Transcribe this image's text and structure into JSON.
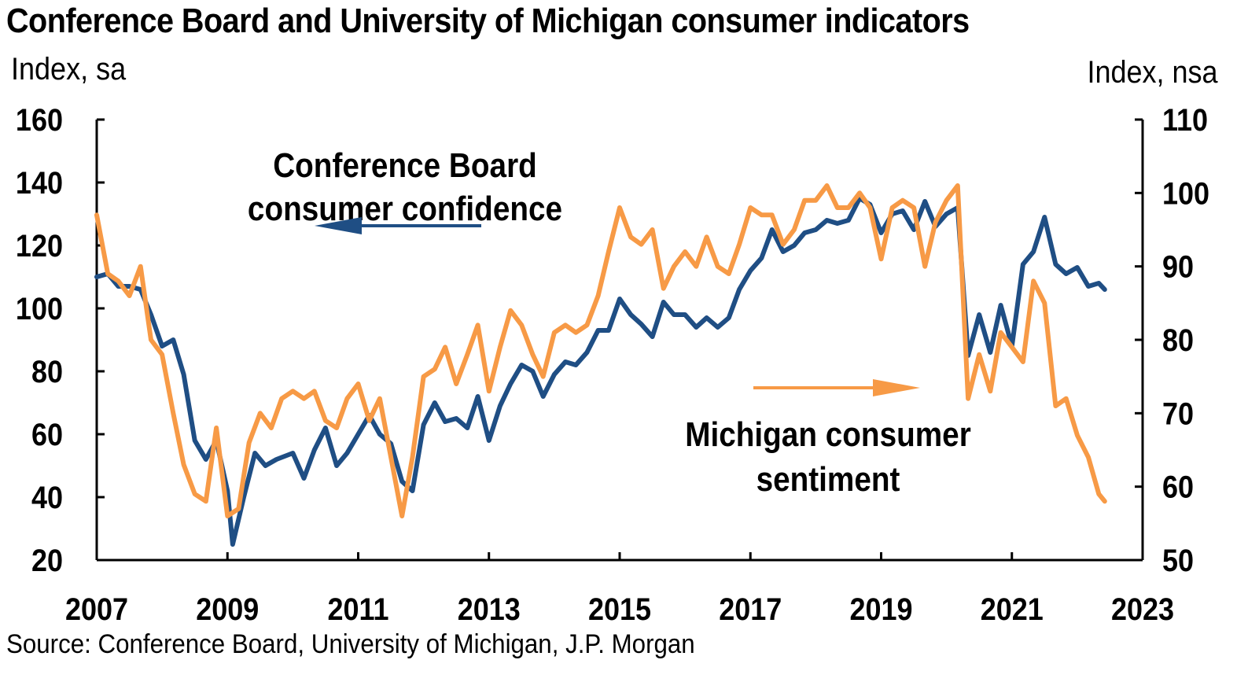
{
  "chart_data": {
    "type": "line",
    "title": "Conference Board and University of Michigan consumer indicators",
    "y_left_label": "Index, sa",
    "y_right_label": "Index, nsa",
    "y_left_lim": [
      20,
      160
    ],
    "y_left_ticks": [
      "20",
      "40",
      "60",
      "80",
      "100",
      "120",
      "140",
      "160"
    ],
    "y_right_lim": [
      50,
      110
    ],
    "y_right_ticks": [
      "50",
      "60",
      "70",
      "80",
      "90",
      "100",
      "110"
    ],
    "x_lim": [
      2007,
      2023
    ],
    "x_ticks": [
      "2007",
      "2009",
      "2011",
      "2013",
      "2015",
      "2017",
      "2019",
      "2021",
      "2023"
    ],
    "grid": false,
    "colors": {
      "conference_board": "#1f4e84",
      "michigan": "#f79a46"
    },
    "annotations": {
      "conference_board": [
        "Conference Board",
        "consumer confidence"
      ],
      "michigan": [
        "Michigan consumer",
        "sentiment"
      ]
    },
    "series": [
      {
        "name": "Conference Board consumer confidence",
        "axis": "left",
        "points": [
          [
            2007.0,
            110
          ],
          [
            2007.17,
            111
          ],
          [
            2007.33,
            107
          ],
          [
            2007.5,
            107
          ],
          [
            2007.67,
            106
          ],
          [
            2007.83,
            98
          ],
          [
            2008.0,
            88
          ],
          [
            2008.17,
            90
          ],
          [
            2008.33,
            79
          ],
          [
            2008.5,
            58
          ],
          [
            2008.67,
            52
          ],
          [
            2008.83,
            58
          ],
          [
            2009.0,
            42
          ],
          [
            2009.08,
            25
          ],
          [
            2009.25,
            40
          ],
          [
            2009.42,
            54
          ],
          [
            2009.58,
            50
          ],
          [
            2009.75,
            52
          ],
          [
            2010.0,
            54
          ],
          [
            2010.17,
            46
          ],
          [
            2010.33,
            55
          ],
          [
            2010.5,
            62
          ],
          [
            2010.67,
            50
          ],
          [
            2010.83,
            54
          ],
          [
            2011.0,
            60
          ],
          [
            2011.17,
            66
          ],
          [
            2011.33,
            60
          ],
          [
            2011.5,
            57
          ],
          [
            2011.67,
            45
          ],
          [
            2011.83,
            42
          ],
          [
            2012.0,
            63
          ],
          [
            2012.17,
            70
          ],
          [
            2012.33,
            64
          ],
          [
            2012.5,
            65
          ],
          [
            2012.67,
            62
          ],
          [
            2012.83,
            72
          ],
          [
            2013.0,
            58
          ],
          [
            2013.17,
            69
          ],
          [
            2013.33,
            76
          ],
          [
            2013.5,
            82
          ],
          [
            2013.67,
            80
          ],
          [
            2013.83,
            72
          ],
          [
            2014.0,
            79
          ],
          [
            2014.17,
            83
          ],
          [
            2014.33,
            82
          ],
          [
            2014.5,
            86
          ],
          [
            2014.67,
            93
          ],
          [
            2014.83,
            93
          ],
          [
            2015.0,
            103
          ],
          [
            2015.17,
            98
          ],
          [
            2015.33,
            95
          ],
          [
            2015.5,
            91
          ],
          [
            2015.67,
            102
          ],
          [
            2015.83,
            98
          ],
          [
            2016.0,
            98
          ],
          [
            2016.17,
            94
          ],
          [
            2016.33,
            97
          ],
          [
            2016.5,
            94
          ],
          [
            2016.67,
            97
          ],
          [
            2016.83,
            106
          ],
          [
            2017.0,
            112
          ],
          [
            2017.17,
            116
          ],
          [
            2017.33,
            125
          ],
          [
            2017.5,
            118
          ],
          [
            2017.67,
            120
          ],
          [
            2017.83,
            124
          ],
          [
            2018.0,
            125
          ],
          [
            2018.17,
            128
          ],
          [
            2018.33,
            127
          ],
          [
            2018.5,
            128
          ],
          [
            2018.67,
            135
          ],
          [
            2018.83,
            133
          ],
          [
            2019.0,
            124
          ],
          [
            2019.17,
            130
          ],
          [
            2019.33,
            131
          ],
          [
            2019.5,
            125
          ],
          [
            2019.67,
            134
          ],
          [
            2019.83,
            126
          ],
          [
            2020.0,
            130
          ],
          [
            2020.17,
            132
          ],
          [
            2020.33,
            85
          ],
          [
            2020.5,
            98
          ],
          [
            2020.67,
            86
          ],
          [
            2020.83,
            101
          ],
          [
            2021.0,
            88
          ],
          [
            2021.17,
            114
          ],
          [
            2021.33,
            118
          ],
          [
            2021.5,
            129
          ],
          [
            2021.67,
            114
          ],
          [
            2021.83,
            111
          ],
          [
            2022.0,
            113
          ],
          [
            2022.17,
            107
          ],
          [
            2022.33,
            108
          ],
          [
            2022.42,
            106
          ]
        ]
      },
      {
        "name": "Michigan consumer sentiment",
        "axis": "right",
        "points": [
          [
            2007.0,
            97
          ],
          [
            2007.17,
            89
          ],
          [
            2007.33,
            88
          ],
          [
            2007.5,
            86
          ],
          [
            2007.67,
            90
          ],
          [
            2007.83,
            80
          ],
          [
            2008.0,
            78
          ],
          [
            2008.17,
            70
          ],
          [
            2008.33,
            63
          ],
          [
            2008.5,
            59
          ],
          [
            2008.67,
            58
          ],
          [
            2008.83,
            68
          ],
          [
            2009.0,
            56
          ],
          [
            2009.17,
            57
          ],
          [
            2009.33,
            66
          ],
          [
            2009.5,
            70
          ],
          [
            2009.67,
            68
          ],
          [
            2009.83,
            72
          ],
          [
            2010.0,
            73
          ],
          [
            2010.17,
            72
          ],
          [
            2010.33,
            73
          ],
          [
            2010.5,
            69
          ],
          [
            2010.67,
            68
          ],
          [
            2010.83,
            72
          ],
          [
            2011.0,
            74
          ],
          [
            2011.17,
            69
          ],
          [
            2011.33,
            72
          ],
          [
            2011.5,
            64
          ],
          [
            2011.67,
            56
          ],
          [
            2011.83,
            64
          ],
          [
            2012.0,
            75
          ],
          [
            2012.17,
            76
          ],
          [
            2012.33,
            79
          ],
          [
            2012.5,
            74
          ],
          [
            2012.67,
            78
          ],
          [
            2012.83,
            82
          ],
          [
            2013.0,
            73
          ],
          [
            2013.17,
            79
          ],
          [
            2013.33,
            84
          ],
          [
            2013.5,
            82
          ],
          [
            2013.67,
            78
          ],
          [
            2013.83,
            75
          ],
          [
            2014.0,
            81
          ],
          [
            2014.17,
            82
          ],
          [
            2014.33,
            81
          ],
          [
            2014.5,
            82
          ],
          [
            2014.67,
            86
          ],
          [
            2014.83,
            92
          ],
          [
            2015.0,
            98
          ],
          [
            2015.17,
            94
          ],
          [
            2015.33,
            93
          ],
          [
            2015.5,
            95
          ],
          [
            2015.67,
            87
          ],
          [
            2015.83,
            90
          ],
          [
            2016.0,
            92
          ],
          [
            2016.17,
            90
          ],
          [
            2016.33,
            94
          ],
          [
            2016.5,
            90
          ],
          [
            2016.67,
            89
          ],
          [
            2016.83,
            93
          ],
          [
            2017.0,
            98
          ],
          [
            2017.17,
            97
          ],
          [
            2017.33,
            97
          ],
          [
            2017.5,
            93
          ],
          [
            2017.67,
            95
          ],
          [
            2017.83,
            99
          ],
          [
            2018.0,
            99
          ],
          [
            2018.17,
            101
          ],
          [
            2018.33,
            98
          ],
          [
            2018.5,
            98
          ],
          [
            2018.67,
            100
          ],
          [
            2018.83,
            98
          ],
          [
            2019.0,
            91
          ],
          [
            2019.17,
            98
          ],
          [
            2019.33,
            99
          ],
          [
            2019.5,
            98
          ],
          [
            2019.67,
            90
          ],
          [
            2019.83,
            96
          ],
          [
            2020.0,
            99
          ],
          [
            2020.17,
            101
          ],
          [
            2020.33,
            72
          ],
          [
            2020.5,
            78
          ],
          [
            2020.67,
            73
          ],
          [
            2020.83,
            81
          ],
          [
            2021.0,
            79
          ],
          [
            2021.17,
            77
          ],
          [
            2021.33,
            88
          ],
          [
            2021.5,
            85
          ],
          [
            2021.67,
            71
          ],
          [
            2021.83,
            72
          ],
          [
            2022.0,
            67
          ],
          [
            2022.17,
            64
          ],
          [
            2022.33,
            59
          ],
          [
            2022.42,
            58
          ]
        ]
      }
    ]
  },
  "source_text": "Source: Conference Board, University of Michigan, J.P. Morgan"
}
